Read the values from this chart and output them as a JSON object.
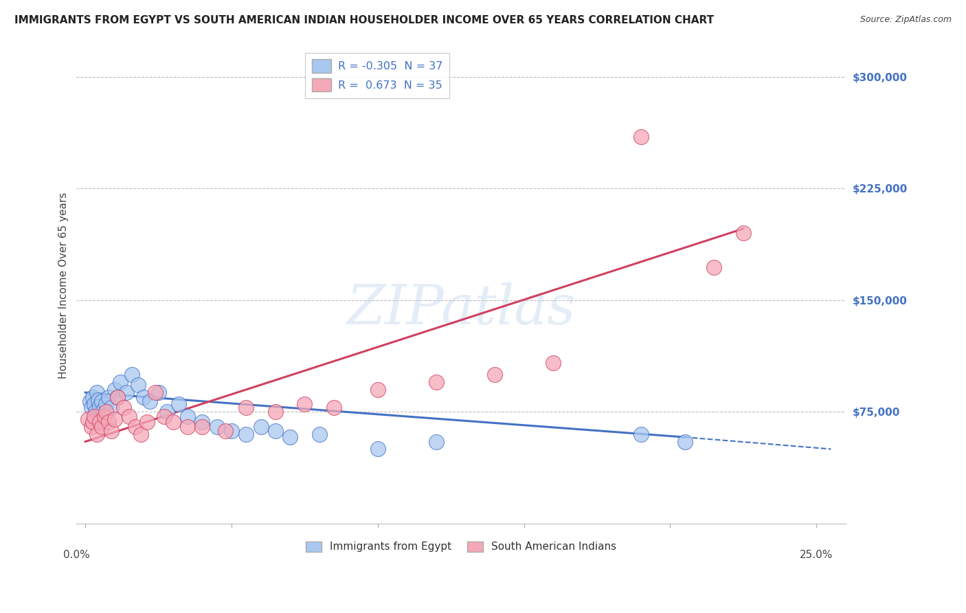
{
  "title": "IMMIGRANTS FROM EGYPT VS SOUTH AMERICAN INDIAN HOUSEHOLDER INCOME OVER 65 YEARS CORRELATION CHART",
  "source": "Source: ZipAtlas.com",
  "ylabel": "Householder Income Over 65 years",
  "y_ticks": [
    0,
    75000,
    150000,
    225000,
    300000
  ],
  "y_tick_labels": [
    "",
    "$75,000",
    "$150,000",
    "$225,000",
    "$300,000"
  ],
  "xmin": 0.0,
  "xmax": 25.0,
  "ymin": 0,
  "ymax": 320000,
  "blue_R": -0.305,
  "blue_N": 37,
  "pink_R": 0.673,
  "pink_N": 35,
  "blue_color": "#A8C8F0",
  "pink_color": "#F5A8B8",
  "blue_line_color": "#4472C4",
  "pink_line_color": "#D04060",
  "legend_label_blue": "Immigrants from Egypt",
  "legend_label_pink": "South American Indians",
  "watermark": "ZIPatlas",
  "background_color": "#FFFFFF",
  "blue_x": [
    0.15,
    0.2,
    0.25,
    0.3,
    0.35,
    0.4,
    0.45,
    0.5,
    0.55,
    0.6,
    0.7,
    0.8,
    0.9,
    1.0,
    1.1,
    1.2,
    1.4,
    1.6,
    1.8,
    2.0,
    2.2,
    2.5,
    2.8,
    3.2,
    3.5,
    4.0,
    4.5,
    5.0,
    5.5,
    6.0,
    6.5,
    7.0,
    8.0,
    10.0,
    12.0,
    19.0,
    20.5
  ],
  "blue_y": [
    82000,
    78000,
    85000,
    80000,
    75000,
    88000,
    83000,
    79000,
    82000,
    76000,
    80000,
    85000,
    78000,
    90000,
    85000,
    95000,
    88000,
    100000,
    93000,
    85000,
    82000,
    88000,
    75000,
    80000,
    72000,
    68000,
    65000,
    62000,
    60000,
    65000,
    62000,
    58000,
    60000,
    50000,
    55000,
    60000,
    55000
  ],
  "pink_x": [
    0.1,
    0.2,
    0.25,
    0.3,
    0.4,
    0.5,
    0.55,
    0.65,
    0.7,
    0.8,
    0.9,
    1.0,
    1.1,
    1.3,
    1.5,
    1.7,
    1.9,
    2.1,
    2.4,
    2.7,
    3.0,
    3.5,
    4.0,
    4.8,
    5.5,
    6.5,
    7.5,
    8.5,
    10.0,
    12.0,
    14.0,
    16.0,
    19.0,
    21.5,
    22.5
  ],
  "pink_y": [
    70000,
    65000,
    68000,
    72000,
    60000,
    68000,
    65000,
    72000,
    75000,
    68000,
    62000,
    70000,
    85000,
    78000,
    72000,
    65000,
    60000,
    68000,
    88000,
    72000,
    68000,
    65000,
    65000,
    62000,
    78000,
    75000,
    80000,
    78000,
    90000,
    95000,
    100000,
    108000,
    260000,
    172000,
    195000
  ],
  "blue_line_x0": 0.0,
  "blue_line_y0": 88000,
  "blue_line_x1": 20.5,
  "blue_line_y1": 58000,
  "blue_dash_x0": 20.5,
  "blue_dash_y0": 58000,
  "blue_dash_x1": 25.5,
  "blue_dash_y1": 50000,
  "pink_line_x0": 0.0,
  "pink_line_y0": 55000,
  "pink_line_x1": 22.5,
  "pink_line_y1": 198000
}
